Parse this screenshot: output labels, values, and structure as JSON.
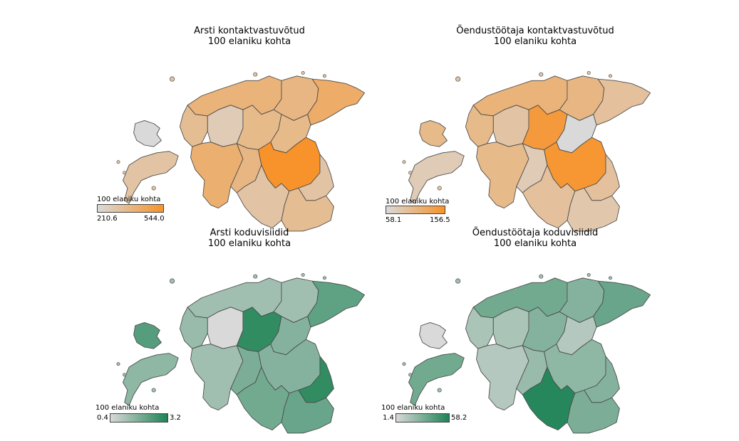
{
  "colors": {
    "orange_low": "#d9d9d9",
    "orange_high": "#f7932a",
    "green_low": "#d9d9d9",
    "green_high": "#1e8355",
    "border": "#4a4a4a"
  },
  "panels": [
    {
      "id": "p1",
      "title_line1": "Arsti kontaktvastuvõtud",
      "title_line2": "100 elaniku kohta",
      "legend_title": "100 elaniku kohta",
      "legend_min": "210.6",
      "legend_max": "544.0",
      "scheme": "orange",
      "region_levels": {
        "harju": 0.55,
        "laane_viru": 0.5,
        "ida_viru": 0.65,
        "hiiu": 0.0,
        "saare": 0.3,
        "laane": 0.4,
        "rapla": 0.2,
        "jarva": 0.45,
        "parnu": 0.6,
        "viljandi": 0.5,
        "jogeva": 0.45,
        "tartu": 1.0,
        "polva": 0.3,
        "valga": 0.3,
        "voru": 0.4
      }
    },
    {
      "id": "p2",
      "title_line1": "Õendustöötaja kontaktvastuvõtud",
      "title_line2": "100 elaniku kohta",
      "legend_title": "100 elaniku kohta",
      "legend_min": "58.1",
      "legend_max": "156.5",
      "scheme": "orange",
      "region_levels": {
        "harju": 0.55,
        "laane_viru": 0.5,
        "ida_viru": 0.35,
        "hiiu": 0.45,
        "saare": 0.2,
        "laane": 0.45,
        "rapla": 0.3,
        "jarva": 0.9,
        "parnu": 0.45,
        "viljandi": 0.2,
        "jogeva": 0.0,
        "tartu": 0.95,
        "polva": 0.35,
        "valga": 0.35,
        "voru": 0.25
      }
    },
    {
      "id": "p3",
      "title_line1": "Arsti koduvisiidid",
      "title_line2": "100 elaniku kohta",
      "legend_title": "100 elaniku kohta",
      "legend_min": "0.4",
      "legend_max": "3.2",
      "scheme": "green",
      "region_levels": {
        "harju": 0.3,
        "laane_viru": 0.3,
        "ida_viru": 0.65,
        "hiiu": 0.7,
        "saare": 0.4,
        "laane": 0.35,
        "rapla": 0.0,
        "jarva": 0.9,
        "parnu": 0.3,
        "viljandi": 0.5,
        "jogeva": 0.45,
        "tartu": 0.45,
        "polva": 0.9,
        "valga": 0.55,
        "voru": 0.6
      }
    },
    {
      "id": "p4",
      "title_line1": "Õendustöötaja koduvisiidid",
      "title_line2": "100 elaniku kohta",
      "legend_title": "100 elaniku kohta",
      "legend_min": "1.4",
      "legend_max": "58.2",
      "scheme": "green",
      "region_levels": {
        "harju": 0.55,
        "laane_viru": 0.45,
        "ida_viru": 0.6,
        "hiiu": 0.0,
        "saare": 0.55,
        "laane": 0.25,
        "rapla": 0.25,
        "jarva": 0.45,
        "parnu": 0.2,
        "viljandi": 0.35,
        "jogeva": 0.2,
        "tartu": 0.4,
        "polva": 0.45,
        "valga": 0.95,
        "voru": 0.5
      }
    }
  ]
}
